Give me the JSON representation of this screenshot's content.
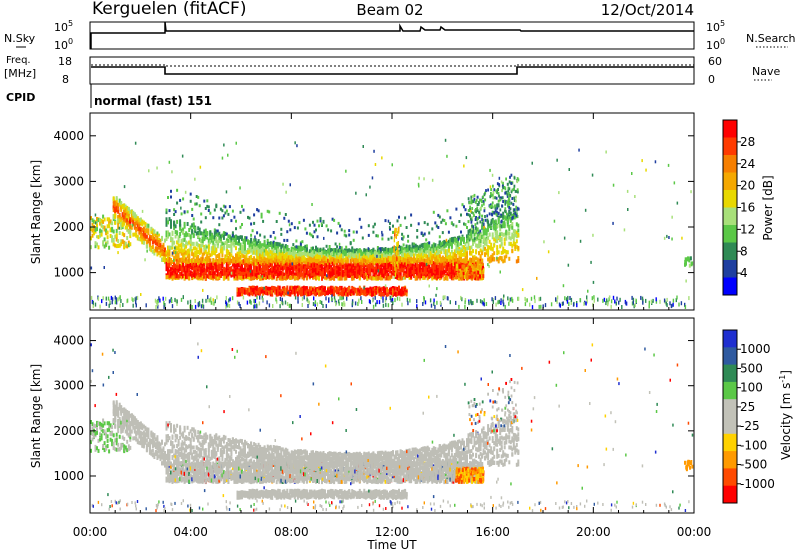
{
  "header": {
    "radar": "Kerguelen (fitACF)",
    "beam": "Beam 02",
    "date": "12/Oct/2014"
  },
  "panels": {
    "nsky_label": "N.Sky",
    "nsearch_label": "N.Search",
    "nsky_ticks": [
      "10^5",
      "10^0"
    ],
    "nsearch_ticks": [
      "10^5",
      "10^0"
    ],
    "freq_label_line1": "Freq.",
    "freq_label_line2": "[MHz]",
    "freq_ticks": [
      "18",
      "8"
    ],
    "nave_label": "Nave",
    "nave_ticks": [
      "60",
      "0"
    ],
    "cpid_label": "CPID",
    "cpid_value": "normal (fast) 151"
  },
  "colors": {
    "power_scale": [
      "#0000ff",
      "#1f3fa0",
      "#2f8a55",
      "#5bc847",
      "#a8e07a",
      "#e8d800",
      "#f5a800",
      "#f77f00",
      "#ff3b00",
      "#ff0000"
    ],
    "velocity_scale": [
      "#1f2fd0",
      "#2f5aa0",
      "#2f8a55",
      "#5bc847",
      "#c2c2b8",
      "#c2c2b8",
      "#ffd200",
      "#ff9a00",
      "#ff4a00",
      "#ff0000"
    ],
    "ground_scatter": "#bebeb6"
  },
  "chart_data": [
    {
      "type": "heatmap",
      "title": "",
      "xlabel": "Time UT",
      "ylabel": "Slant Range [km]",
      "x_tick_labels": [
        "00:00",
        "04:00",
        "08:00",
        "12:00",
        "16:00",
        "20:00",
        "00:00"
      ],
      "y_tick_labels": [
        "1000",
        "2000",
        "3000",
        "4000"
      ],
      "xlim": [
        "00:00",
        "24:00"
      ],
      "ylim": [
        180,
        4500
      ],
      "colorbar_label": "Power [dB]",
      "colorbar_ticks": [
        "4",
        "8",
        "12",
        "16",
        "20",
        "24",
        "28"
      ],
      "colorbar_range": [
        0,
        32
      ],
      "features": [
        {
          "name": "main echo band",
          "x_start": "03:00",
          "x_end": "15:30",
          "range_km": [
            800,
            1200
          ],
          "power_db": 28
        },
        {
          "name": "upper green band",
          "x_start": "03:00",
          "x_end": "17:00",
          "range_km": [
            1200,
            2000
          ],
          "power_db": 14
        },
        {
          "name": "lower red band",
          "x_start": "06:00",
          "x_end": "12:30",
          "range_km": [
            450,
            650
          ],
          "power_db": 28
        }
      ]
    },
    {
      "type": "heatmap",
      "title": "",
      "xlabel": "Time UT",
      "ylabel": "Slant Range [km]",
      "x_tick_labels": [
        "00:00",
        "04:00",
        "08:00",
        "12:00",
        "16:00",
        "20:00",
        "00:00"
      ],
      "y_tick_labels": [
        "1000",
        "2000",
        "3000",
        "4000"
      ],
      "xlim": [
        "00:00",
        "24:00"
      ],
      "ylim": [
        180,
        4500
      ],
      "colorbar_label": "Velocity [m s^-1]",
      "colorbar_ticks": [
        "1000",
        "500",
        "100",
        "25",
        "-25",
        "-100",
        "-500",
        "-1000"
      ],
      "features": [
        {
          "name": "ground scatter",
          "x_start": "01:00",
          "x_end": "17:00",
          "range_km": [
            400,
            2300
          ],
          "velocity": 0
        },
        {
          "name": "receding patch",
          "x_start": "14:30",
          "x_end": "15:30",
          "range_km": [
            850,
            1100
          ],
          "velocity": -500
        }
      ]
    }
  ]
}
